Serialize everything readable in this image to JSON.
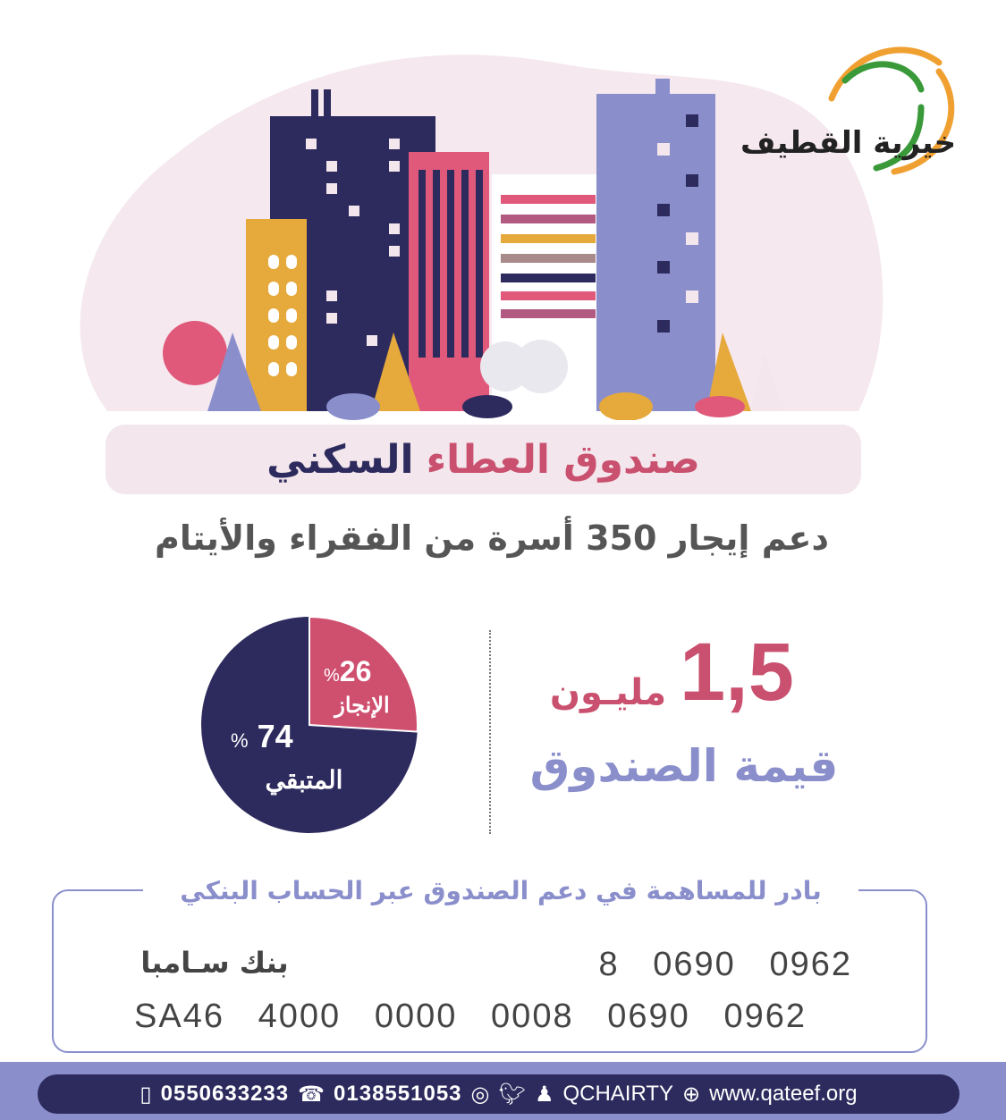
{
  "logo": {
    "text": "خيرية القطيف",
    "colors": {
      "orange": "#f0a030",
      "green": "#3a9a3a"
    }
  },
  "title": {
    "part1": "صندوق العطاء",
    "part2": "السكني"
  },
  "subtitle": "دعم إيجار 350 أسرة من الفقراء والأيتام",
  "fund": {
    "value": "1,5",
    "unit": "مليـون",
    "label": "قيمة الصندوق"
  },
  "chart_data": {
    "type": "pie",
    "slices": [
      {
        "label": "الإنجاز",
        "value": 26,
        "display": "26",
        "color": "#cf4f6f"
      },
      {
        "label": "المتبقي",
        "value": 74,
        "display": "74",
        "color": "#2d2b5e"
      }
    ],
    "percent_sign": "%"
  },
  "bank": {
    "legend": "بادر للمساهمة في دعم الصندوق عبر الحساب البنكي",
    "name": "بنك سـامبا",
    "account": "8   0690   0962",
    "iban": "SA46   4000   0000   0008   0690   0962"
  },
  "footer": {
    "mobile": "0550633233",
    "phone": "0138551053",
    "social": "QCHAIRTY",
    "website": "www.qateef.org"
  },
  "colors": {
    "pink": "#c9506e",
    "navy": "#2d2b5e",
    "lavender": "#8a8fcc",
    "blob": "#f5e8ef"
  }
}
